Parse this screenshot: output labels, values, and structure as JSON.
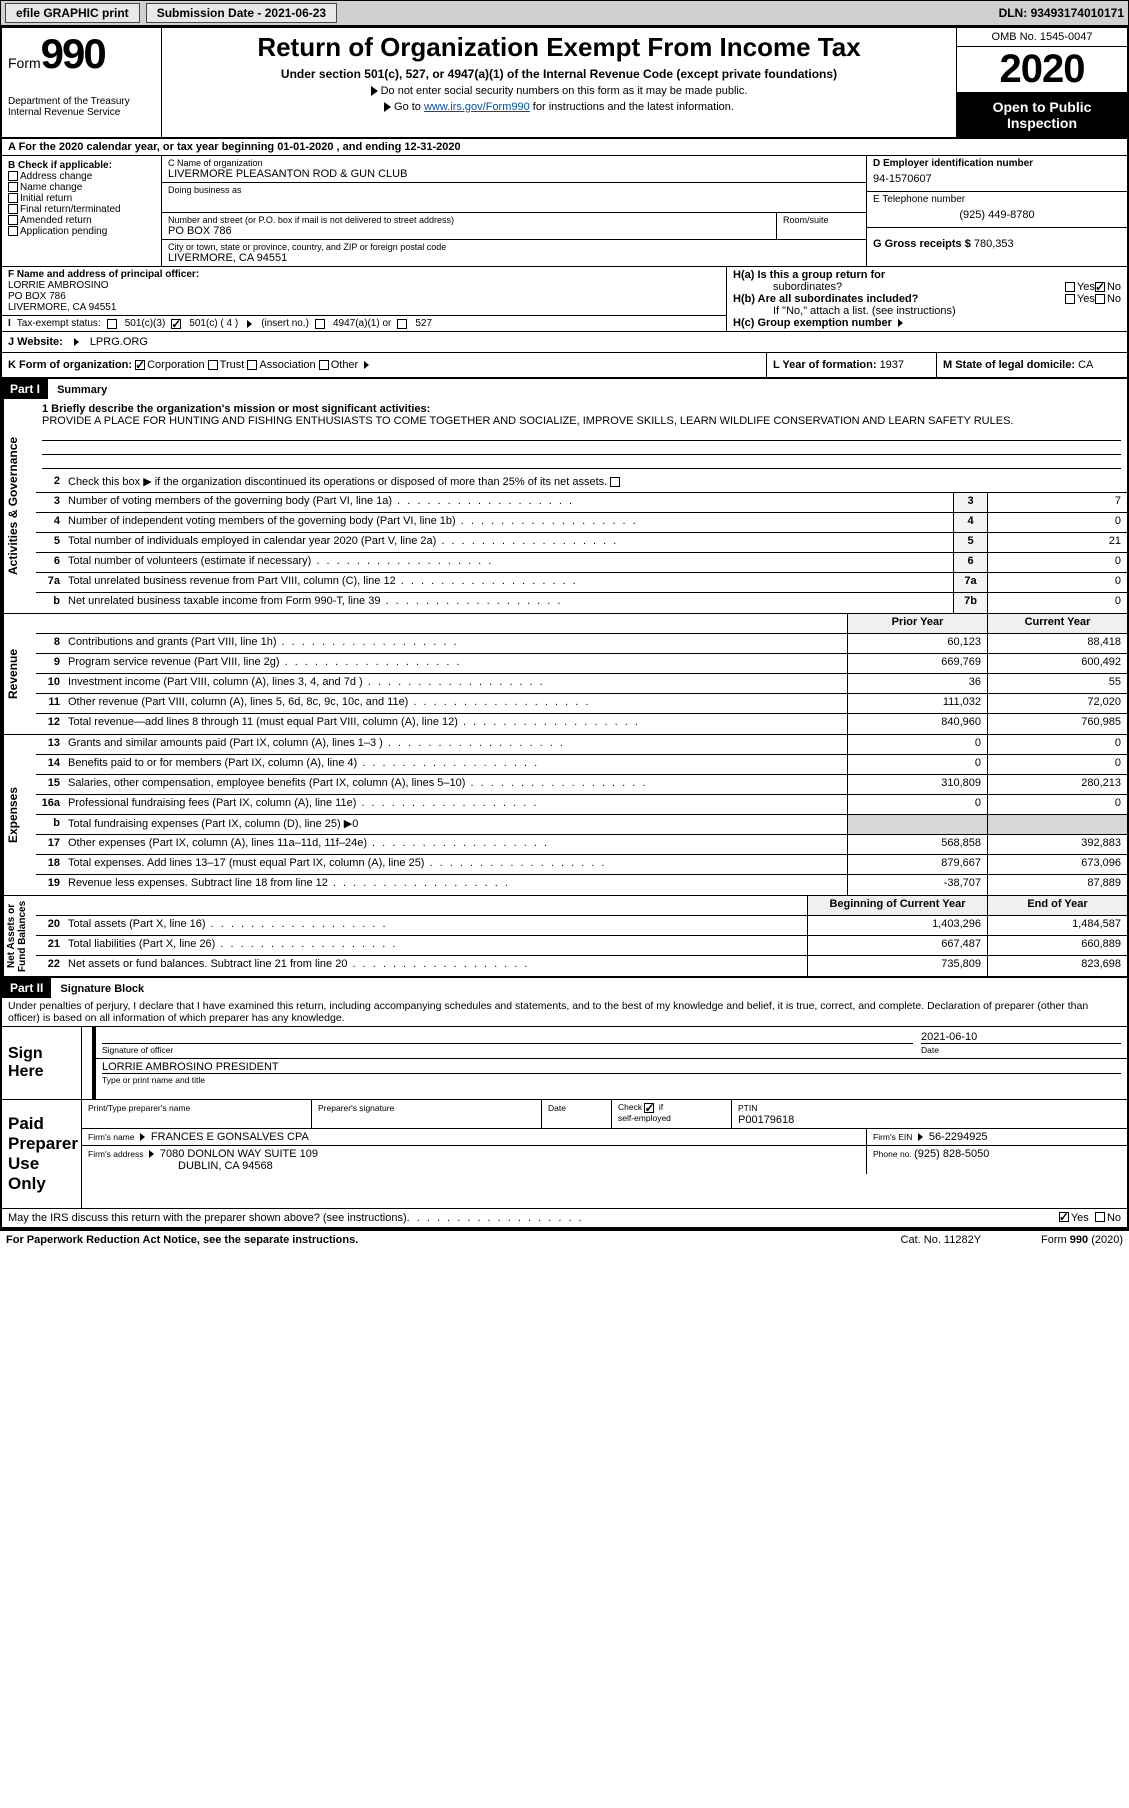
{
  "topbar": {
    "efile": "efile GRAPHIC print",
    "subdate_label": "Submission Date - ",
    "subdate": "2021-06-23",
    "dln_label": "DLN: ",
    "dln": "93493174010171"
  },
  "header": {
    "form_word": "Form",
    "form_num": "990",
    "dept": "Department of the Treasury\nInternal Revenue Service",
    "title": "Return of Organization Exempt From Income Tax",
    "subtitle": "Under section 501(c), 527, or 4947(a)(1) of the Internal Revenue Code (except private foundations)",
    "note1": "Do not enter social security numbers on this form as it may be made public.",
    "note2_pre": "Go to ",
    "note2_link": "www.irs.gov/Form990",
    "note2_post": " for instructions and the latest information.",
    "omb": "OMB No. 1545-0047",
    "year": "2020",
    "otp1": "Open to Public",
    "otp2": "Inspection"
  },
  "rowA": "A For the 2020 calendar year, or tax year beginning 01-01-2020   , and ending 12-31-2020",
  "colB": {
    "label": "B Check if applicable:",
    "items": [
      "Address change",
      "Name change",
      "Initial return",
      "Final return/terminated",
      "Amended return",
      "Application pending"
    ]
  },
  "colC": {
    "name_lbl": "C Name of organization",
    "name": "LIVERMORE PLEASANTON ROD & GUN CLUB",
    "dba_lbl": "Doing business as",
    "dba": "",
    "addr_lbl": "Number and street (or P.O. box if mail is not delivered to street address)",
    "room_lbl": "Room/suite",
    "addr": "PO BOX 786",
    "city_lbl": "City or town, state or province, country, and ZIP or foreign postal code",
    "city": "LIVERMORE, CA  94551"
  },
  "colD": {
    "ein_lbl": "D Employer identification number",
    "ein": "94-1570607",
    "tel_lbl": "E Telephone number",
    "tel": "(925) 449-8780",
    "gross_lbl": "G Gross receipts $ ",
    "gross": "780,353"
  },
  "colF": {
    "lbl": "F  Name and address of principal officer:",
    "name": "LORRIE AMBROSINO",
    "addr1": "PO BOX 786",
    "addr2": "LIVERMORE, CA  94551"
  },
  "colH": {
    "a": "H(a)  Is this a group return for",
    "a2": "subordinates?",
    "b": "H(b)  Are all subordinates included?",
    "bnote": "If \"No,\" attach a list. (see instructions)",
    "c": "H(c)  Group exemption number",
    "yes": "Yes",
    "no": "No"
  },
  "rowI": {
    "lbl": "Tax-exempt status:",
    "c3": "501(c)(3)",
    "c": "501(c) ( 4 )",
    "cins": "(insert no.)",
    "a1": "4947(a)(1) or",
    "s527": "527"
  },
  "rowJ": {
    "lbl": "J   Website:",
    "val": "LPRG.ORG"
  },
  "rowK": {
    "lbl": "K Form of organization:",
    "opts": [
      "Corporation",
      "Trust",
      "Association",
      "Other"
    ],
    "l_lbl": "L Year of formation: ",
    "l_val": "1937",
    "m_lbl": "M State of legal domicile: ",
    "m_val": "CA"
  },
  "part1": {
    "hdr": "Part I",
    "title": "Summary",
    "vlab1": "Activities & Governance",
    "l1_lbl": "1  Briefly describe the organization's mission or most significant activities:",
    "l1_txt": "PROVIDE A PLACE FOR HUNTING AND FISHING ENTHUSIASTS TO COME TOGETHER AND SOCIALIZE, IMPROVE SKILLS, LEARN WILDLIFE CONSERVATION AND LEARN SAFETY RULES.",
    "l2": "Check this box ▶   if the organization discontinued its operations or disposed of more than 25% of its net assets.",
    "lines_ag": [
      {
        "n": "3",
        "t": "Number of voting members of the governing body (Part VI, line 1a)",
        "b": "3",
        "v": "7"
      },
      {
        "n": "4",
        "t": "Number of independent voting members of the governing body (Part VI, line 1b)",
        "b": "4",
        "v": "0"
      },
      {
        "n": "5",
        "t": "Total number of individuals employed in calendar year 2020 (Part V, line 2a)",
        "b": "5",
        "v": "21"
      },
      {
        "n": "6",
        "t": "Total number of volunteers (estimate if necessary)",
        "b": "6",
        "v": "0"
      },
      {
        "n": "7a",
        "t": "Total unrelated business revenue from Part VIII, column (C), line 12",
        "b": "7a",
        "v": "0"
      },
      {
        "n": "b",
        "t": "Net unrelated business taxable income from Form 990-T, line 39",
        "b": "7b",
        "v": "0"
      }
    ],
    "vlab2": "Revenue",
    "col_py": "Prior Year",
    "col_cy": "Current Year",
    "lines_rev": [
      {
        "n": "8",
        "t": "Contributions and grants (Part VIII, line 1h)",
        "py": "60,123",
        "cy": "88,418"
      },
      {
        "n": "9",
        "t": "Program service revenue (Part VIII, line 2g)",
        "py": "669,769",
        "cy": "600,492"
      },
      {
        "n": "10",
        "t": "Investment income (Part VIII, column (A), lines 3, 4, and 7d )",
        "py": "36",
        "cy": "55"
      },
      {
        "n": "11",
        "t": "Other revenue (Part VIII, column (A), lines 5, 6d, 8c, 9c, 10c, and 11e)",
        "py": "111,032",
        "cy": "72,020"
      },
      {
        "n": "12",
        "t": "Total revenue—add lines 8 through 11 (must equal Part VIII, column (A), line 12)",
        "py": "840,960",
        "cy": "760,985"
      }
    ],
    "vlab3": "Expenses",
    "lines_exp": [
      {
        "n": "13",
        "t": "Grants and similar amounts paid (Part IX, column (A), lines 1–3 )",
        "py": "0",
        "cy": "0"
      },
      {
        "n": "14",
        "t": "Benefits paid to or for members (Part IX, column (A), line 4)",
        "py": "0",
        "cy": "0"
      },
      {
        "n": "15",
        "t": "Salaries, other compensation, employee benefits (Part IX, column (A), lines 5–10)",
        "py": "310,809",
        "cy": "280,213"
      },
      {
        "n": "16a",
        "t": "Professional fundraising fees (Part IX, column (A), line 11e)",
        "py": "0",
        "cy": "0"
      },
      {
        "n": "b",
        "t": "Total fundraising expenses (Part IX, column (D), line 25) ▶0",
        "py": "",
        "cy": "",
        "gray": true
      },
      {
        "n": "17",
        "t": "Other expenses (Part IX, column (A), lines 11a–11d, 11f–24e)",
        "py": "568,858",
        "cy": "392,883"
      },
      {
        "n": "18",
        "t": "Total expenses. Add lines 13–17 (must equal Part IX, column (A), line 25)",
        "py": "879,667",
        "cy": "673,096"
      },
      {
        "n": "19",
        "t": "Revenue less expenses. Subtract line 18 from line 12",
        "py": "-38,707",
        "cy": "87,889"
      }
    ],
    "vlab4": "Net Assets or\nFund Balances",
    "col_bcy": "Beginning of Current Year",
    "col_eoy": "End of Year",
    "lines_na": [
      {
        "n": "20",
        "t": "Total assets (Part X, line 16)",
        "py": "1,403,296",
        "cy": "1,484,587"
      },
      {
        "n": "21",
        "t": "Total liabilities (Part X, line 26)",
        "py": "667,487",
        "cy": "660,889"
      },
      {
        "n": "22",
        "t": "Net assets or fund balances. Subtract line 21 from line 20",
        "py": "735,809",
        "cy": "823,698"
      }
    ]
  },
  "part2": {
    "hdr": "Part II",
    "title": "Signature Block",
    "decl": "Under penalties of perjury, I declare that I have examined this return, including accompanying schedules and statements, and to the best of my knowledge and belief, it is true, correct, and complete. Declaration of preparer (other than officer) is based on all information of which preparer has any knowledge.",
    "sign_here": "Sign\nHere",
    "sig_of": "Signature of officer",
    "date_lbl": "Date",
    "date": "2021-06-10",
    "officer": "LORRIE AMBROSINO  PRESIDENT",
    "type_lbl": "Type or print name and title",
    "paid": "Paid\nPreparer\nUse Only",
    "pt_name_lbl": "Print/Type preparer's name",
    "pt_name": "",
    "pt_sig_lbl": "Preparer's signature",
    "pt_date_lbl": "Date",
    "chk_se": "Check       if\nself-employed",
    "ptin_lbl": "PTIN",
    "ptin": "P00179618",
    "firm_name_lbl": "Firm's name    ",
    "firm_name": "FRANCES E GONSALVES CPA",
    "firm_ein_lbl": "Firm's EIN ",
    "firm_ein": "56-2294925",
    "firm_addr_lbl": "Firm's address ",
    "firm_addr1": "7080 DONLON WAY SUITE 109",
    "firm_addr2": "DUBLIN, CA  94568",
    "phone_lbl": "Phone no. ",
    "phone": "(925) 828-5050",
    "discuss": "May the IRS discuss this return with the preparer shown above? (see instructions)",
    "yes": "Yes",
    "no": "No"
  },
  "footer": {
    "left": "For Paperwork Reduction Act Notice, see the separate instructions.",
    "mid": "Cat. No. 11282Y",
    "right": "Form 990 (2020)"
  }
}
